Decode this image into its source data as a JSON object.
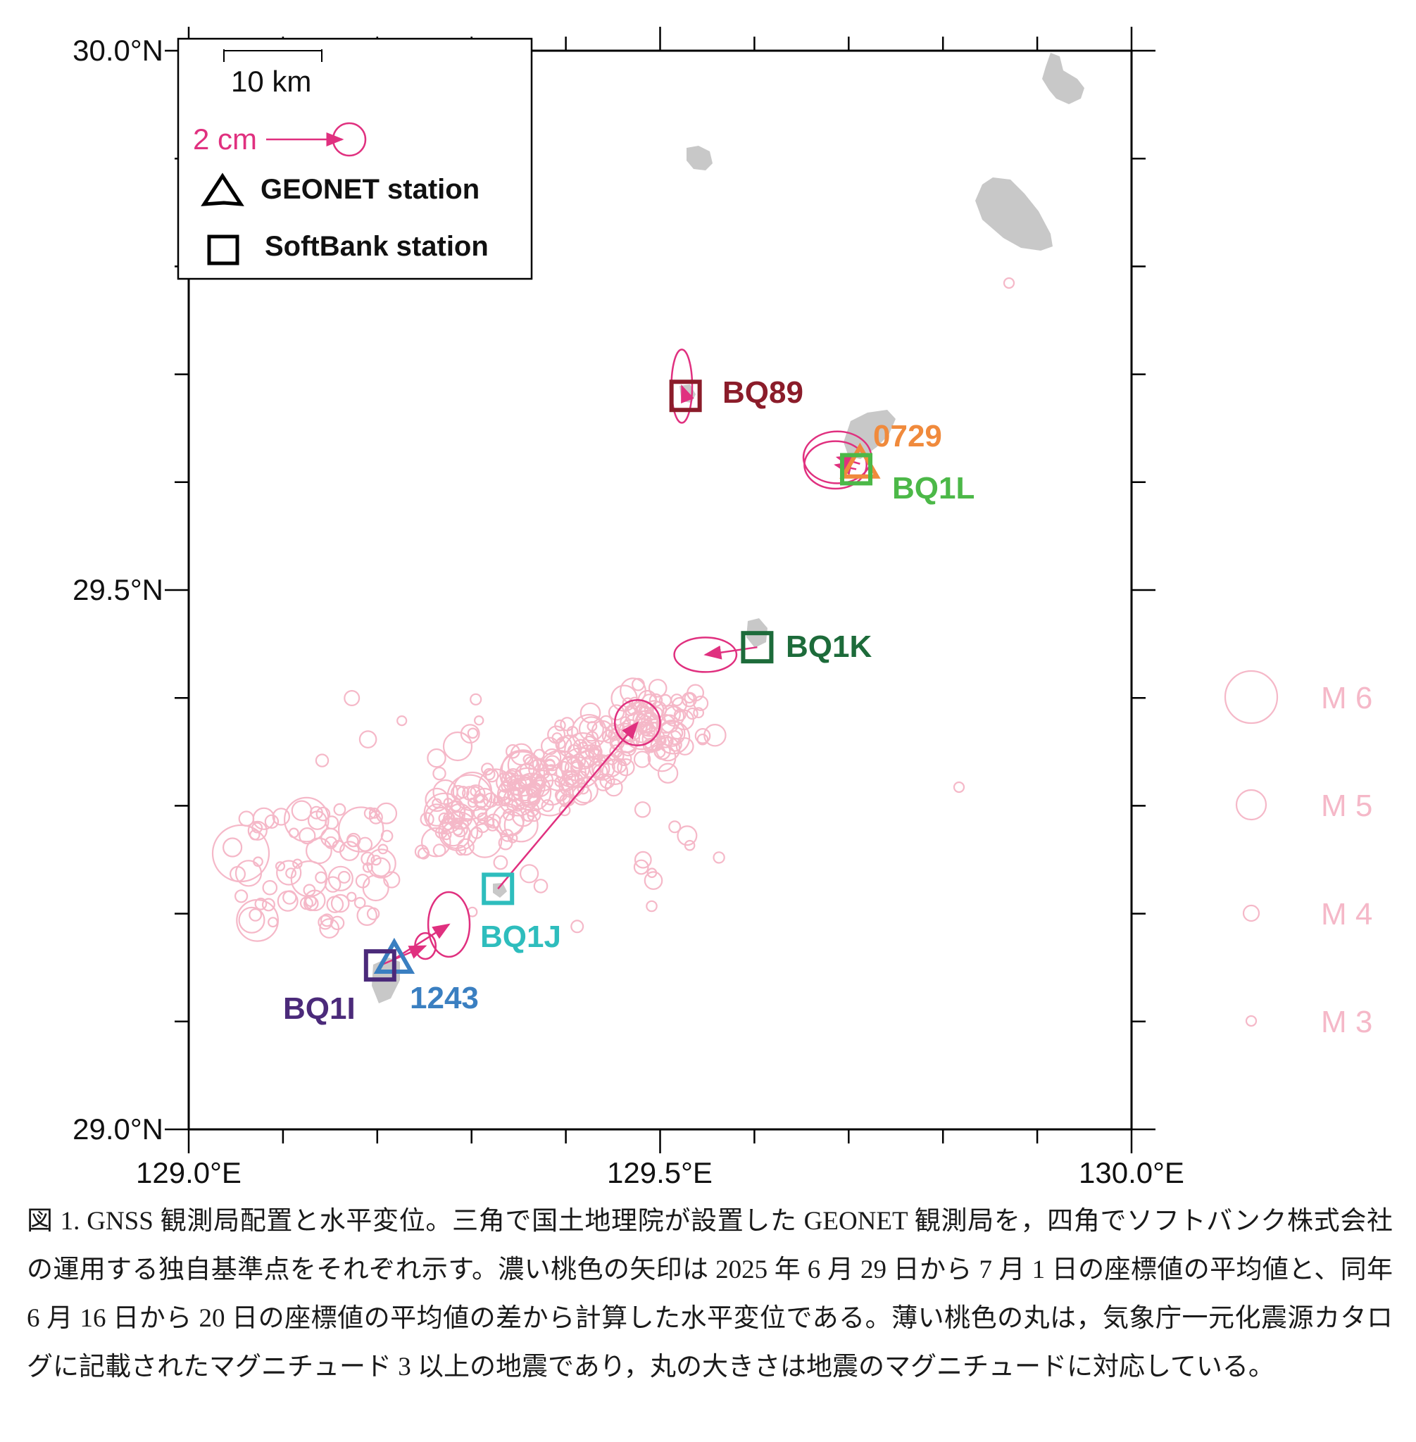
{
  "axes": {
    "y_ticks": [
      "30.0°N",
      "29.5°N",
      "29.0°N"
    ],
    "x_ticks": [
      "129.0°E",
      "129.5°E",
      "130.0°E"
    ],
    "lon_range": [
      129.0,
      130.0
    ],
    "lat_range": [
      29.0,
      30.0
    ]
  },
  "legend": {
    "scale_label": "10 km",
    "vector_label": "2 cm",
    "geonet_label": "GEONET station",
    "softbank_label": "SoftBank station"
  },
  "stations": [
    {
      "id": "BQ89",
      "type": "softbank",
      "lon": 129.527,
      "lat": 29.68,
      "color": "#8b1c2a",
      "dx": -0.004,
      "dy": 0.009,
      "ex": 0.011,
      "ey": 0.034
    },
    {
      "id": "0729",
      "type": "geonet",
      "lon": 129.712,
      "lat": 29.617,
      "color": "#f08a3c",
      "dx": -0.024,
      "dy": 0.006,
      "ex": 0.036,
      "ey": 0.024
    },
    {
      "id": "BQ1L",
      "type": "softbank",
      "lon": 129.708,
      "lat": 29.612,
      "color": "#4cb848",
      "dx": -0.022,
      "dy": 0.004,
      "ex": 0.033,
      "ey": 0.022
    },
    {
      "id": "BQ1K",
      "type": "softbank",
      "lon": 129.603,
      "lat": 29.447,
      "color": "#1d6b3a",
      "dx": -0.055,
      "dy": -0.007,
      "ex": 0.033,
      "ey": 0.016
    },
    {
      "id": "BQ1J",
      "type": "softbank",
      "lon": 129.328,
      "lat": 29.223,
      "color": "#2ebdbd",
      "dx": 0.148,
      "dy": 0.154,
      "ex": 0.024,
      "ey": 0.021
    },
    {
      "id": "1243",
      "type": "geonet",
      "lon": 129.218,
      "lat": 29.158,
      "color": "#3a7fc1",
      "dx": 0.058,
      "dy": 0.032,
      "ex": 0.022,
      "ey": 0.03
    },
    {
      "id": "BQ1I",
      "type": "softbank",
      "lon": 129.203,
      "lat": 29.152,
      "color": "#4b2a7a",
      "dx": 0.048,
      "dy": 0.018,
      "ex": 0.011,
      "ey": 0.012
    }
  ],
  "magnitude_legend": [
    "M 6",
    "M 5",
    "M 4",
    "M 3"
  ],
  "colors": {
    "arrow": "#e0307f",
    "quake": "#f5b8c8",
    "land": "#c8c8c8",
    "frame": "#000000"
  },
  "caption": "図 1. GNSS 観測局配置と水平変位。三角で国土地理院が設置した GEONET 観測局を，四角でソフトバンク株式会社の運用する独自基準点をそれぞれ示す。濃い桃色の矢印は 2025 年 6 月 29 日から 7 月 1 日の座標値の平均値と、同年 6 月 16 日から 20 日の座標値の平均値の差から計算した水平変位である。薄い桃色の丸は，気象庁一元化震源カタログに記載されたマグニチュード 3 以上の地震であり，丸の大きさは地震のマグニチュードに対応している。"
}
